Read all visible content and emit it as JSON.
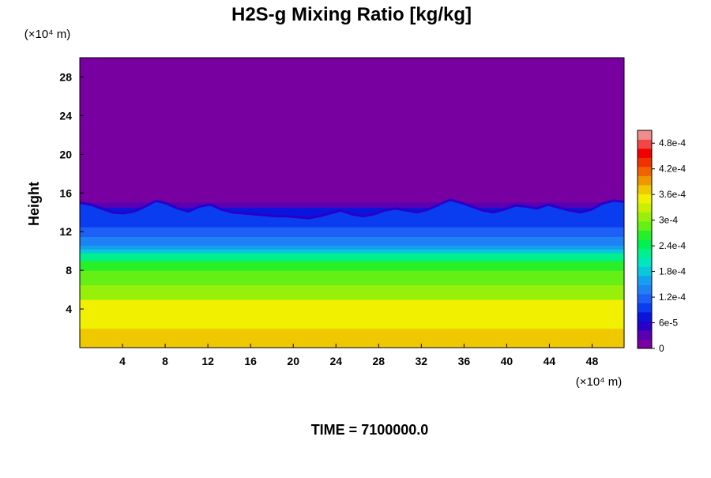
{
  "chart_data": {
    "type": "heatmap",
    "title": "H2S-g Mixing Ratio [kg/kg]",
    "ylabel": "Height",
    "xlabel": "",
    "y_unit": "(×10⁴ m)",
    "x_unit": "(×10⁴ m)",
    "time_label": "TIME = 7100000.0",
    "xlim": [
      0,
      51
    ],
    "ylim": [
      0,
      30
    ],
    "x_ticks": [
      "4",
      "8",
      "12",
      "16",
      "20",
      "24",
      "28",
      "32",
      "36",
      "40",
      "44",
      "48"
    ],
    "y_ticks": [
      "4",
      "8",
      "12",
      "16",
      "20",
      "24",
      "28"
    ],
    "colorbar": {
      "range": [
        0,
        0.00051
      ],
      "tick_labels": [
        "0",
        "6e-5",
        "1.2e-4",
        "1.8e-4",
        "2.4e-4",
        "3e-4",
        "3.6e-4",
        "4.2e-4",
        "4.8e-4"
      ],
      "colors": [
        "#7800a0",
        "#5a00b4",
        "#2800c8",
        "#0a14dc",
        "#0a3cf0",
        "#1e5ff5",
        "#1e82f5",
        "#14a0f0",
        "#0ac8dc",
        "#00e6be",
        "#00f08c",
        "#00f050",
        "#28f028",
        "#64f014",
        "#96f00a",
        "#c8f000",
        "#f0f000",
        "#f0c800",
        "#f09600",
        "#f06400",
        "#f03200",
        "#f00000",
        "#f04646",
        "#f08c8c"
      ]
    },
    "profile": [
      {
        "height": 0.0,
        "value": 0.00037
      },
      {
        "height": 2.0,
        "value": 0.00036
      },
      {
        "height": 2.5,
        "value": 0.00034
      },
      {
        "height": 5.0,
        "value": 0.00031
      },
      {
        "height": 6.5,
        "value": 0.00029
      },
      {
        "height": 8.0,
        "value": 0.00026
      },
      {
        "height": 9.0,
        "value": 0.00023
      },
      {
        "height": 9.8,
        "value": 0.00019
      },
      {
        "height": 10.2,
        "value": 0.00016
      },
      {
        "height": 10.6,
        "value": 0.00013
      },
      {
        "height": 11.5,
        "value": 0.00011
      },
      {
        "height": 12.5,
        "value": 0.0001
      },
      {
        "height": 13.5,
        "value": 8e-05
      },
      {
        "height": 14.5,
        "value": 4e-05
      },
      {
        "height": 15.0,
        "value": 0.0
      }
    ],
    "interface_height": [
      15.0,
      14.8,
      14.4,
      14.0,
      13.9,
      14.1,
      14.6,
      15.2,
      14.9,
      14.4,
      14.1,
      14.6,
      14.8,
      14.3,
      14.0,
      13.9,
      13.8,
      13.7,
      13.6,
      13.6,
      13.5,
      13.4,
      13.6,
      13.9,
      14.2,
      13.8,
      13.6,
      13.8,
      14.2,
      14.4,
      14.2,
      14.0,
      14.3,
      14.8,
      15.3,
      15.0,
      14.6,
      14.2,
      14.0,
      14.3,
      14.7,
      14.6,
      14.4,
      14.8,
      14.5,
      14.2,
      14.0,
      14.3,
      14.9,
      15.2,
      15.1
    ]
  }
}
